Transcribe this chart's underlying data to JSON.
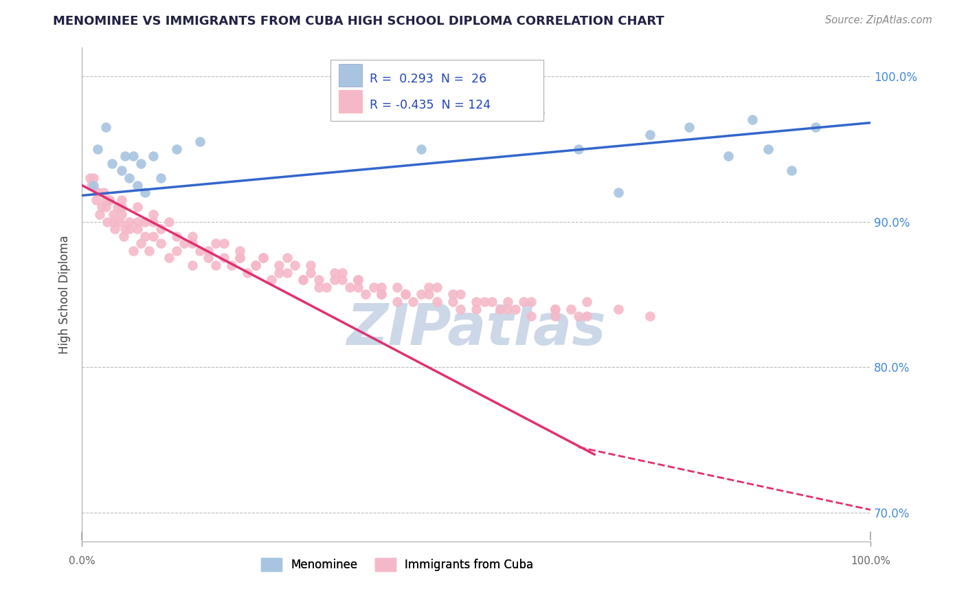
{
  "title": "MENOMINEE VS IMMIGRANTS FROM CUBA HIGH SCHOOL DIPLOMA CORRELATION CHART",
  "source_text": "Source: ZipAtlas.com",
  "ylabel": "High School Diploma",
  "xlim": [
    0.0,
    100.0
  ],
  "ylim": [
    83.5,
    101.5
  ],
  "yticks": [
    70.0,
    80.0,
    90.0,
    100.0
  ],
  "ytick_labels": [
    "70.0%",
    "80.0%",
    "90.0%",
    "100.0%"
  ],
  "menominee_color": "#a8c4e0",
  "cuba_color": "#f5b8c8",
  "trend_blue": "#3366cc",
  "trend_pink": "#e03070",
  "background_color": "#ffffff",
  "grid_color": "#bbbbbb",
  "watermark_color": "#ccd8e8",
  "menominee_x": [
    1.5,
    2.0,
    3.0,
    3.8,
    5.0,
    5.5,
    6.0,
    6.5,
    7.0,
    7.5,
    8.0,
    9.0,
    10.0,
    12.0,
    15.0,
    43.0,
    58.0,
    63.0,
    68.0,
    72.0,
    77.0,
    82.0,
    85.0,
    87.0,
    90.0,
    93.0
  ],
  "menominee_y": [
    92.5,
    95.0,
    96.5,
    94.0,
    93.5,
    94.5,
    93.0,
    94.5,
    92.5,
    94.0,
    92.0,
    94.5,
    93.0,
    95.0,
    95.5,
    95.0,
    97.5,
    95.0,
    92.0,
    96.0,
    96.5,
    94.5,
    97.0,
    95.0,
    93.5,
    96.5
  ],
  "cuba_x": [
    1.0,
    1.2,
    1.5,
    1.8,
    2.0,
    2.2,
    2.5,
    2.8,
    3.0,
    3.2,
    3.5,
    4.0,
    4.2,
    4.5,
    4.8,
    5.0,
    5.3,
    5.5,
    6.0,
    6.5,
    7.0,
    7.5,
    8.0,
    8.5,
    9.0,
    10.0,
    11.0,
    12.0,
    13.0,
    14.0,
    15.0,
    16.0,
    17.0,
    18.0,
    19.0,
    20.0,
    21.0,
    22.0,
    23.0,
    24.0,
    25.0,
    26.0,
    27.0,
    28.0,
    29.0,
    30.0,
    31.0,
    32.0,
    33.0,
    34.0,
    35.0,
    36.0,
    37.0,
    38.0,
    40.0,
    41.0,
    42.0,
    44.0,
    45.0,
    47.0,
    48.0,
    50.0,
    52.0,
    54.0,
    55.0,
    57.0,
    60.0,
    62.0,
    64.0,
    3.0,
    4.0,
    5.0,
    6.0,
    7.0,
    8.0,
    9.0,
    10.0,
    12.0,
    14.0,
    16.0,
    18.0,
    20.0,
    22.0,
    25.0,
    28.0,
    30.0,
    33.0,
    35.0,
    38.0,
    40.0,
    43.0,
    45.0,
    48.0,
    51.0,
    54.0,
    57.0,
    60.0,
    63.0,
    2.0,
    3.5,
    5.0,
    7.0,
    9.0,
    11.0,
    14.0,
    17.0,
    20.0,
    23.0,
    26.0,
    29.0,
    32.0,
    35.0,
    38.0,
    41.0,
    44.0,
    47.0,
    50.0,
    53.0,
    56.0,
    60.0,
    64.0,
    68.0,
    72.0
  ],
  "cuba_y": [
    93.0,
    92.5,
    93.0,
    91.5,
    92.0,
    90.5,
    91.0,
    92.0,
    91.5,
    90.0,
    91.5,
    90.5,
    89.5,
    91.0,
    90.0,
    90.5,
    89.0,
    89.5,
    90.0,
    88.0,
    89.5,
    88.5,
    90.0,
    88.0,
    89.0,
    88.5,
    87.5,
    88.0,
    88.5,
    87.0,
    88.0,
    87.5,
    87.0,
    88.5,
    87.0,
    87.5,
    86.5,
    87.0,
    87.5,
    86.0,
    87.0,
    86.5,
    87.0,
    86.0,
    86.5,
    86.0,
    85.5,
    86.0,
    86.5,
    85.5,
    86.0,
    85.0,
    85.5,
    85.0,
    85.5,
    85.0,
    84.5,
    85.0,
    85.5,
    84.5,
    85.0,
    84.0,
    84.5,
    84.5,
    84.0,
    84.5,
    83.5,
    84.0,
    84.5,
    91.0,
    90.0,
    91.0,
    89.5,
    91.0,
    89.0,
    90.0,
    89.5,
    89.0,
    88.5,
    88.0,
    87.5,
    87.5,
    87.0,
    86.5,
    86.0,
    85.5,
    86.0,
    85.5,
    85.0,
    84.5,
    85.0,
    84.5,
    84.0,
    84.5,
    84.0,
    83.5,
    84.0,
    83.5,
    92.0,
    91.5,
    91.5,
    90.0,
    90.5,
    90.0,
    89.0,
    88.5,
    88.0,
    87.5,
    87.5,
    87.0,
    86.5,
    86.0,
    85.5,
    85.0,
    85.5,
    85.0,
    84.5,
    84.0,
    84.5,
    84.0,
    83.5,
    84.0,
    83.5
  ]
}
